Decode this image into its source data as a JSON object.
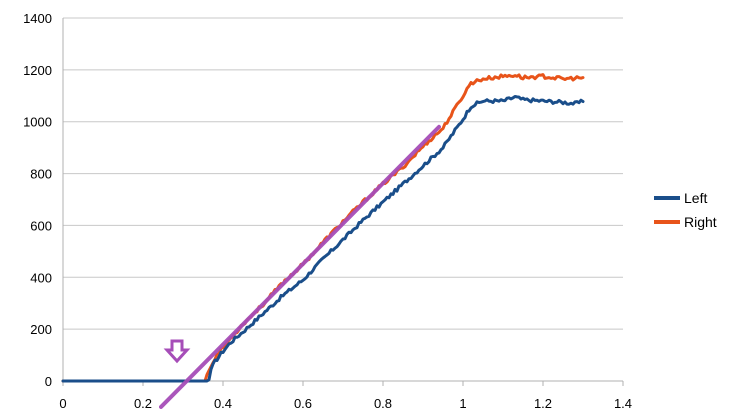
{
  "chart_data": {
    "type": "line",
    "title": "",
    "xlabel": "",
    "ylabel": "",
    "xlim": [
      0,
      1.4
    ],
    "ylim": [
      0,
      1400
    ],
    "x_ticks": [
      "0",
      "0.2",
      "0.4",
      "0.6",
      "0.8",
      "1",
      "1.2",
      "1.4"
    ],
    "y_ticks": [
      "0",
      "200",
      "400",
      "600",
      "800",
      "1000",
      "1200",
      "1400"
    ],
    "grid": "horizontal",
    "legend_position": "right",
    "series": [
      {
        "name": "Left",
        "color": "#1a4e8a",
        "points": [
          [
            0.0,
            0
          ],
          [
            0.36,
            0
          ],
          [
            0.365,
            5
          ],
          [
            0.37,
            45
          ],
          [
            0.38,
            75
          ],
          [
            0.4,
            115
          ],
          [
            0.42,
            150
          ],
          [
            0.45,
            190
          ],
          [
            0.5,
            260
          ],
          [
            0.55,
            330
          ],
          [
            0.6,
            390
          ],
          [
            0.65,
            470
          ],
          [
            0.7,
            545
          ],
          [
            0.75,
            620
          ],
          [
            0.8,
            690
          ],
          [
            0.85,
            760
          ],
          [
            0.9,
            830
          ],
          [
            0.95,
            900
          ],
          [
            1.0,
            1010
          ],
          [
            1.02,
            1060
          ],
          [
            1.05,
            1080
          ],
          [
            1.1,
            1080
          ],
          [
            1.13,
            1095
          ],
          [
            1.15,
            1085
          ],
          [
            1.2,
            1080
          ],
          [
            1.25,
            1075
          ],
          [
            1.28,
            1070
          ],
          [
            1.3,
            1078
          ]
        ]
      },
      {
        "name": "Right",
        "color": "#e8541a",
        "points": [
          [
            0.0,
            0
          ],
          [
            0.355,
            0
          ],
          [
            0.36,
            25
          ],
          [
            0.37,
            55
          ],
          [
            0.38,
            90
          ],
          [
            0.4,
            130
          ],
          [
            0.45,
            220
          ],
          [
            0.5,
            295
          ],
          [
            0.55,
            380
          ],
          [
            0.6,
            450
          ],
          [
            0.65,
            535
          ],
          [
            0.7,
            615
          ],
          [
            0.75,
            690
          ],
          [
            0.8,
            760
          ],
          [
            0.85,
            825
          ],
          [
            0.9,
            905
          ],
          [
            0.95,
            975
          ],
          [
            1.0,
            1100
          ],
          [
            1.02,
            1150
          ],
          [
            1.05,
            1165
          ],
          [
            1.1,
            1175
          ],
          [
            1.13,
            1180
          ],
          [
            1.15,
            1170
          ],
          [
            1.2,
            1175
          ],
          [
            1.25,
            1165
          ],
          [
            1.3,
            1170
          ]
        ]
      }
    ],
    "annotations": [
      {
        "type": "trend-line",
        "color": "#a64db8",
        "from": [
          0.245,
          -100
        ],
        "to": [
          0.94,
          980
        ]
      },
      {
        "type": "arrow-marker",
        "direction": "down",
        "color": "#a64db8",
        "at": [
          0.3,
          0
        ]
      }
    ]
  }
}
